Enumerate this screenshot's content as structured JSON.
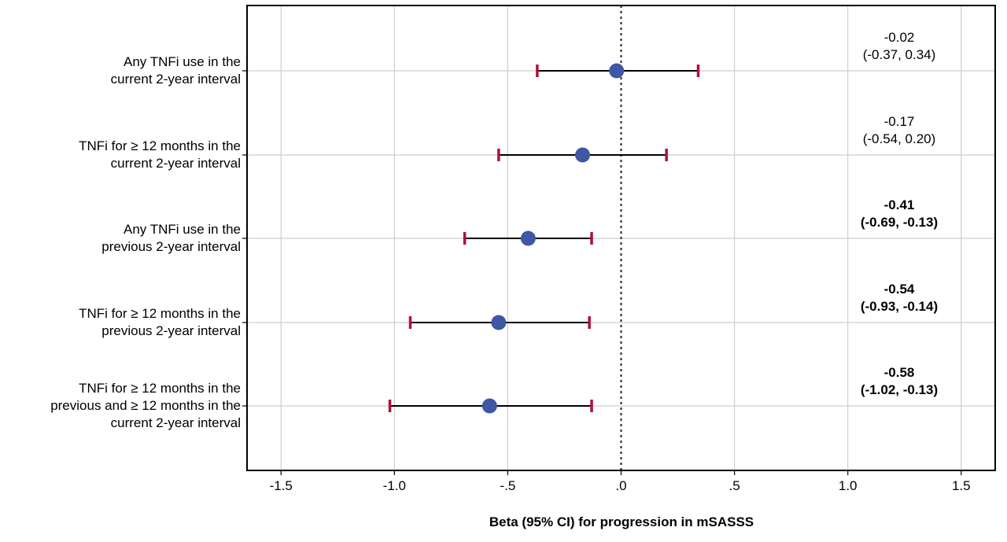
{
  "chart_data": {
    "type": "forest",
    "title": "",
    "xlabel": "Beta (95% CI) for progression in mSASSS",
    "ylabel": "",
    "xlim": [
      -1.65,
      1.65
    ],
    "xticks": [
      -1.5,
      -1.0,
      -0.5,
      0.0,
      0.5,
      1.0,
      1.5
    ],
    "xtick_labels": [
      "-1.5",
      "-1.0",
      "-.5",
      ".0",
      ".5",
      "1.0",
      "1.5"
    ],
    "reference_line": 0.0,
    "grid": true,
    "rows": [
      {
        "label_lines": [
          "Any TNFi use in the",
          "current 2-year interval"
        ],
        "beta": -0.02,
        "ci_low": -0.37,
        "ci_high": 0.34,
        "annotation_lines": [
          "-0.02",
          "(-0.37, 0.34)"
        ],
        "bold": false
      },
      {
        "label_lines": [
          "TNFi for ≥ 12 months in the",
          "current 2-year interval"
        ],
        "beta": -0.17,
        "ci_low": -0.54,
        "ci_high": 0.2,
        "annotation_lines": [
          "-0.17",
          "(-0.54, 0.20)"
        ],
        "bold": false
      },
      {
        "label_lines": [
          "Any TNFi use in the",
          "previous 2-year interval"
        ],
        "beta": -0.41,
        "ci_low": -0.69,
        "ci_high": -0.13,
        "annotation_lines": [
          "-0.41",
          "(-0.69, -0.13)"
        ],
        "bold": true
      },
      {
        "label_lines": [
          "TNFi for ≥ 12 months in the",
          "previous 2-year interval"
        ],
        "beta": -0.54,
        "ci_low": -0.93,
        "ci_high": -0.14,
        "annotation_lines": [
          "-0.54",
          "(-0.93, -0.14)"
        ],
        "bold": true
      },
      {
        "label_lines": [
          "TNFi for ≥ 12 months in the",
          "previous and ≥ 12 months in the",
          "current 2-year interval"
        ],
        "beta": -0.58,
        "ci_low": -1.02,
        "ci_high": -0.13,
        "annotation_lines": [
          "-0.58",
          "(-1.02, -0.13)"
        ],
        "bold": true
      }
    ],
    "colors": {
      "point": "#3f57a5",
      "ci_line": "#000000",
      "ci_cap": "#b0103a",
      "grid": "#cfcfcf",
      "frame": "#000000",
      "reference": "#333333"
    }
  }
}
